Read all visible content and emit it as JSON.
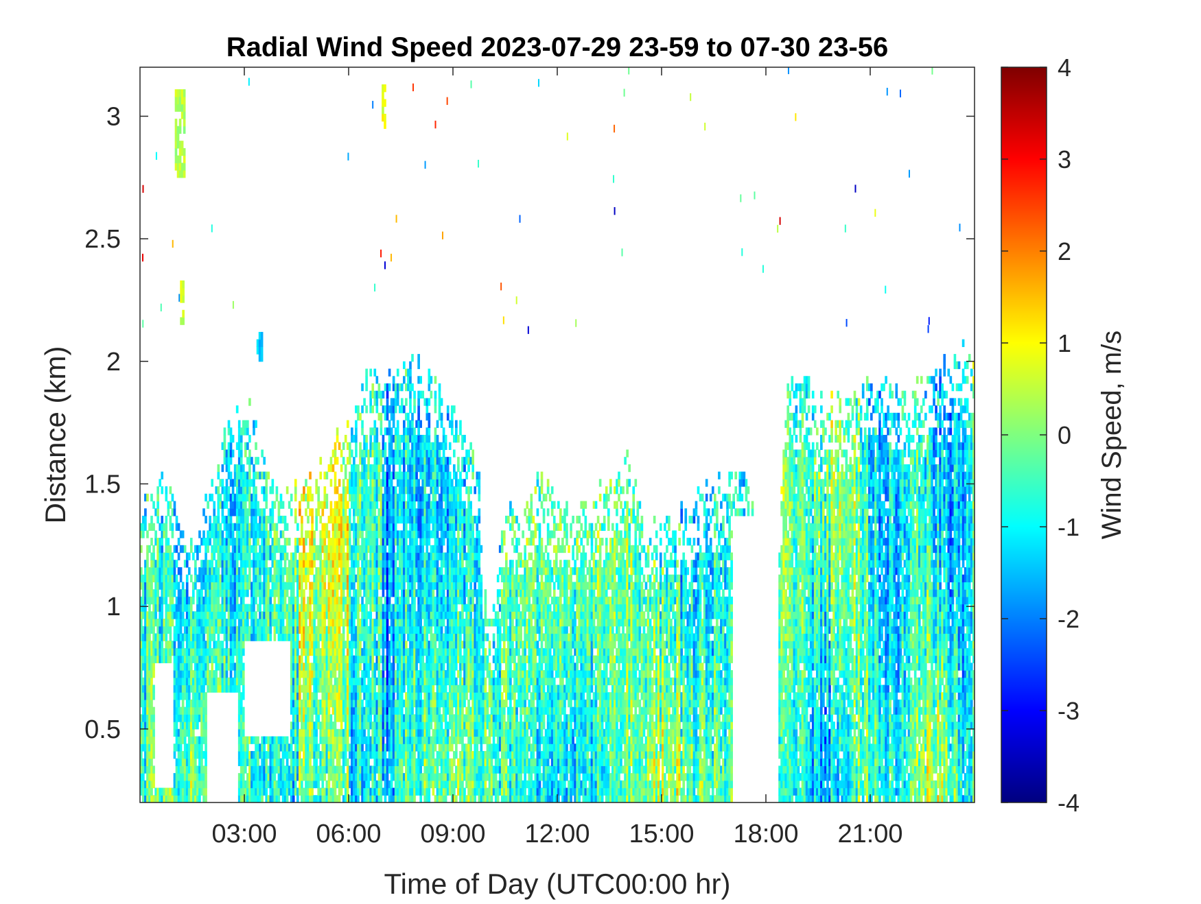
{
  "chart_data": {
    "type": "heatmap",
    "title": "Radial Wind Speed 2023-07-29 23-59 to 07-30 23-56",
    "xlabel": "Time of Day (UTC00:00 hr)",
    "ylabel": "Distance (km)",
    "x_range_hours": [
      0,
      24
    ],
    "y_range_km": [
      0.2,
      3.2
    ],
    "x_ticks": [
      {
        "value": 3,
        "label": "03:00"
      },
      {
        "value": 6,
        "label": "06:00"
      },
      {
        "value": 9,
        "label": "09:00"
      },
      {
        "value": 12,
        "label": "12:00"
      },
      {
        "value": 15,
        "label": "15:00"
      },
      {
        "value": 18,
        "label": "18:00"
      },
      {
        "value": 21,
        "label": "21:00"
      }
    ],
    "y_ticks": [
      {
        "value": 0.5,
        "label": "0.5"
      },
      {
        "value": 1.0,
        "label": "1"
      },
      {
        "value": 1.5,
        "label": "1.5"
      },
      {
        "value": 2.0,
        "label": "2"
      },
      {
        "value": 2.5,
        "label": "2.5"
      },
      {
        "value": 3.0,
        "label": "3"
      }
    ],
    "colorbar": {
      "label": "Wind Speed, m/s",
      "colormap": "jet",
      "range": [
        -4,
        4
      ],
      "ticks": [
        {
          "value": 4,
          "label": "4"
        },
        {
          "value": 3,
          "label": "3"
        },
        {
          "value": 2,
          "label": "2"
        },
        {
          "value": 1,
          "label": "1"
        },
        {
          "value": 0,
          "label": "0"
        },
        {
          "value": -1,
          "label": "-1"
        },
        {
          "value": -2,
          "label": "-2"
        },
        {
          "value": -3,
          "label": "-3"
        },
        {
          "value": -4,
          "label": "-4"
        }
      ]
    },
    "grid": false,
    "data_top_km": [
      {
        "time": 0.0,
        "top": 1.35
      },
      {
        "time": 0.3,
        "top": 1.45
      },
      {
        "time": 0.8,
        "top": 1.5
      },
      {
        "time": 1.2,
        "top": 1.3
      },
      {
        "time": 1.6,
        "top": 1.25
      },
      {
        "time": 2.0,
        "top": 1.5
      },
      {
        "time": 2.5,
        "top": 1.7
      },
      {
        "time": 3.0,
        "top": 1.85
      },
      {
        "time": 3.5,
        "top": 1.6
      },
      {
        "time": 4.0,
        "top": 1.45
      },
      {
        "time": 5.0,
        "top": 1.5
      },
      {
        "time": 5.6,
        "top": 1.65
      },
      {
        "time": 6.5,
        "top": 1.9
      },
      {
        "time": 7.5,
        "top": 1.95
      },
      {
        "time": 8.0,
        "top": 2.0
      },
      {
        "time": 8.7,
        "top": 1.85
      },
      {
        "time": 9.3,
        "top": 1.7
      },
      {
        "time": 9.7,
        "top": 1.55
      },
      {
        "time": 10.0,
        "top": 0.9
      },
      {
        "time": 10.6,
        "top": 1.45
      },
      {
        "time": 11.0,
        "top": 1.35
      },
      {
        "time": 11.5,
        "top": 1.5
      },
      {
        "time": 12.0,
        "top": 1.4
      },
      {
        "time": 12.6,
        "top": 1.35
      },
      {
        "time": 13.3,
        "top": 1.45
      },
      {
        "time": 14.0,
        "top": 1.6
      },
      {
        "time": 14.5,
        "top": 1.3
      },
      {
        "time": 15.5,
        "top": 1.35
      },
      {
        "time": 16.3,
        "top": 1.45
      },
      {
        "time": 17.3,
        "top": 1.55
      },
      {
        "time": 17.8,
        "top": 1.4
      },
      {
        "time": 18.3,
        "top": 1.2
      },
      {
        "time": 18.6,
        "top": 1.95
      },
      {
        "time": 19.3,
        "top": 1.85
      },
      {
        "time": 20.0,
        "top": 1.8
      },
      {
        "time": 21.0,
        "top": 1.9
      },
      {
        "time": 22.0,
        "top": 1.85
      },
      {
        "time": 23.0,
        "top": 1.95
      },
      {
        "time": 24.0,
        "top": 2.05
      }
    ],
    "data_gaps": [
      {
        "t0": 1.9,
        "t1": 2.8,
        "z0": 0.2,
        "z1": 0.65
      },
      {
        "t0": 3.0,
        "t1": 4.3,
        "z0": 0.45,
        "z1": 0.85
      },
      {
        "t0": 17.0,
        "t1": 18.3,
        "z0": 0.2,
        "z1": 1.35
      },
      {
        "t0": 0.4,
        "t1": 0.9,
        "z0": 0.25,
        "z1": 0.75
      }
    ],
    "isolated_patches": [
      {
        "t0": 1.0,
        "t1": 1.3,
        "z0": 2.75,
        "z1": 3.08,
        "speed": 0.4
      },
      {
        "t0": 1.15,
        "t1": 1.25,
        "z0": 2.15,
        "z1": 2.3,
        "speed": 0.6
      },
      {
        "t0": 3.35,
        "t1": 3.5,
        "z0": 2.0,
        "z1": 2.1,
        "speed": -1.5
      },
      {
        "t0": 6.95,
        "t1": 7.02,
        "z0": 2.95,
        "z1": 3.12,
        "speed": 0.8
      }
    ]
  }
}
